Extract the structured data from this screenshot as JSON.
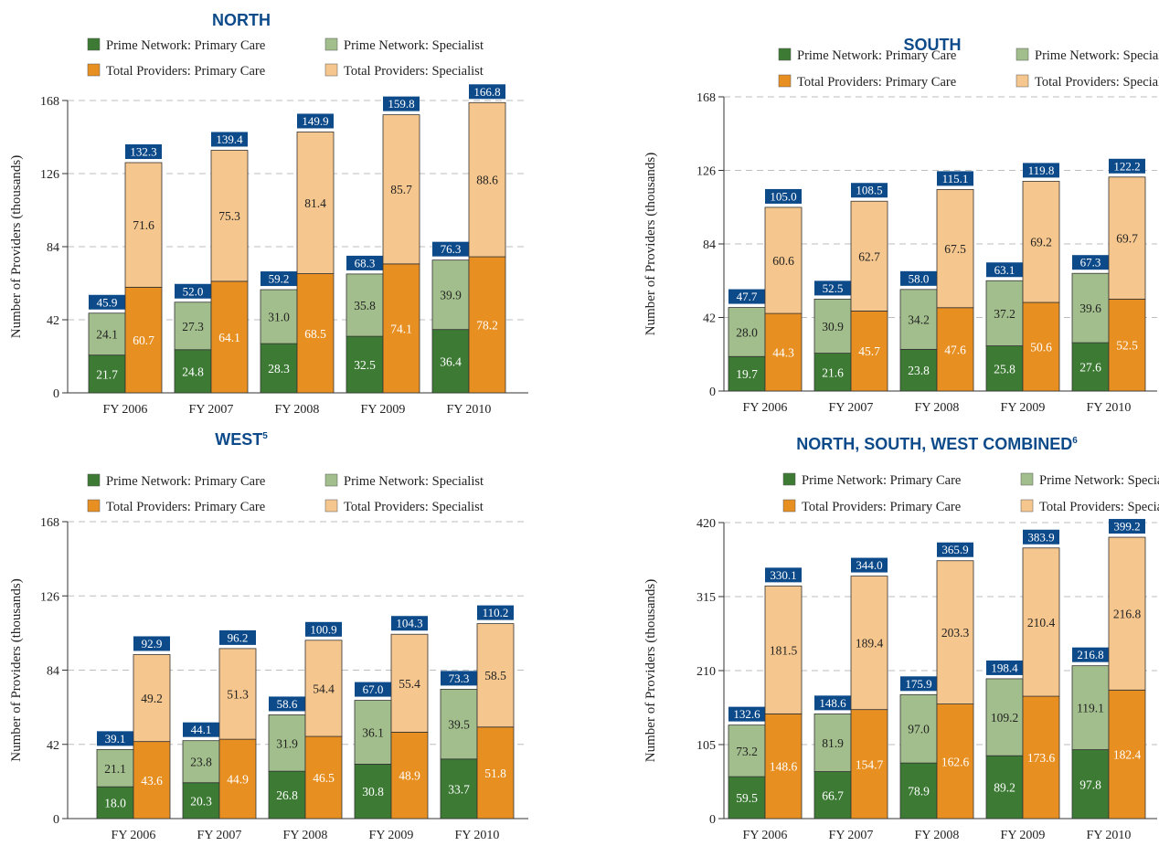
{
  "colors": {
    "prime_primary": "#3d7b35",
    "prime_specialist": "#a2be8c",
    "total_primary": "#e88f22",
    "total_specialist": "#f5c68d",
    "total_badge": "#0d4a8a",
    "grid": "#bdbdbd"
  },
  "legend": {
    "prime_primary": "Prime Network: Primary Care",
    "prime_specialist": "Prime Network: Specialist",
    "total_primary": "Total Providers: Primary Care",
    "total_specialist": "Total Providers: Specialist"
  },
  "chart_data": [
    {
      "type": "bar",
      "title": "NORTH",
      "title_sup": "",
      "ylabel": "Number of Providers (thousands)",
      "ylim": [
        0,
        168
      ],
      "yticks": [
        0,
        42,
        84,
        126,
        168
      ],
      "categories": [
        "FY 2006",
        "FY 2007",
        "FY 2008",
        "FY 2009",
        "FY 2010"
      ],
      "prime": {
        "primary": [
          21.7,
          24.8,
          28.3,
          32.5,
          36.4
        ],
        "specialist": [
          24.1,
          27.3,
          31.0,
          35.8,
          39.9
        ],
        "total": [
          "45.9",
          "52.0",
          "59.2",
          "68.3",
          "76.3"
        ]
      },
      "totals": {
        "primary": [
          60.7,
          64.1,
          68.5,
          74.1,
          78.2
        ],
        "specialist": [
          71.6,
          75.3,
          81.4,
          85.7,
          88.6
        ],
        "total": [
          "132.3",
          "139.4",
          "149.9",
          "159.8",
          "166.8"
        ]
      }
    },
    {
      "type": "bar",
      "title": "SOUTH",
      "title_sup": "",
      "ylabel": "Number of Providers (thousands)",
      "ylim": [
        0,
        168
      ],
      "yticks": [
        0,
        42,
        84,
        126,
        168
      ],
      "categories": [
        "FY 2006",
        "FY 2007",
        "FY 2008",
        "FY 2009",
        "FY 2010"
      ],
      "prime": {
        "primary": [
          19.7,
          21.6,
          23.8,
          25.8,
          27.6
        ],
        "specialist": [
          28.0,
          30.9,
          34.2,
          37.2,
          39.6
        ],
        "total": [
          "47.7",
          "52.5",
          "58.0",
          "63.1",
          "67.3"
        ]
      },
      "totals": {
        "primary": [
          44.3,
          45.7,
          47.6,
          50.6,
          52.5
        ],
        "specialist": [
          60.6,
          62.7,
          67.5,
          69.2,
          69.7
        ],
        "total": [
          "105.0",
          "108.5",
          "115.1",
          "119.8",
          "122.2"
        ]
      }
    },
    {
      "type": "bar",
      "title": "WEST",
      "title_sup": "5",
      "ylabel": "Number of Providers (thousands)",
      "ylim": [
        0,
        168
      ],
      "yticks": [
        0,
        42,
        84,
        126,
        168
      ],
      "categories": [
        "FY 2006",
        "FY 2007",
        "FY 2008",
        "FY 2009",
        "FY 2010"
      ],
      "prime": {
        "primary": [
          18.0,
          20.3,
          26.8,
          30.8,
          33.7
        ],
        "specialist": [
          21.1,
          23.8,
          31.9,
          36.1,
          39.5
        ],
        "total": [
          "39.1",
          "44.1",
          "58.6",
          "67.0",
          "73.3"
        ]
      },
      "totals": {
        "primary": [
          43.6,
          44.9,
          46.5,
          48.9,
          51.8
        ],
        "specialist": [
          49.2,
          51.3,
          54.4,
          55.4,
          58.5
        ],
        "total": [
          "92.9",
          "96.2",
          "100.9",
          "104.3",
          "110.2"
        ]
      }
    },
    {
      "type": "bar",
      "title": "NORTH, SOUTH, WEST COMBINED",
      "title_sup": "6",
      "ylabel": "Number of Providers (thousands)",
      "ylim": [
        0,
        420
      ],
      "yticks": [
        0,
        105,
        210,
        315,
        420
      ],
      "categories": [
        "FY 2006",
        "FY 2007",
        "FY 2008",
        "FY 2009",
        "FY 2010"
      ],
      "prime": {
        "primary": [
          59.5,
          66.7,
          78.9,
          89.2,
          97.8
        ],
        "specialist": [
          73.2,
          81.9,
          97.0,
          109.2,
          119.1
        ],
        "total": [
          "132.6",
          "148.6",
          "175.9",
          "198.4",
          "216.8"
        ]
      },
      "totals": {
        "primary": [
          148.6,
          154.7,
          162.6,
          173.6,
          182.4
        ],
        "specialist": [
          181.5,
          189.4,
          203.3,
          210.4,
          216.8
        ],
        "total": [
          "330.1",
          "344.0",
          "365.9",
          "383.9",
          "399.2"
        ]
      }
    }
  ]
}
